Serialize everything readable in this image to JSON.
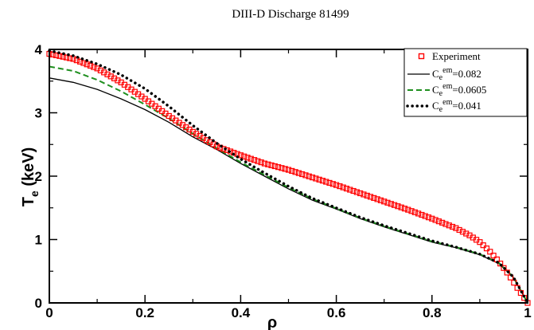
{
  "chart_data": {
    "type": "line",
    "title": "DIII-D Discharge 81499",
    "xlabel": "ρ",
    "ylabel": {
      "main": "T",
      "sub": "e",
      "rest": " (keV)"
    },
    "xlim": [
      0,
      1
    ],
    "ylim": [
      0,
      4
    ],
    "x_ticks": [
      {
        "value": 0,
        "label": "0"
      },
      {
        "value": 0.2,
        "label": "0.2"
      },
      {
        "value": 0.4,
        "label": "0.4"
      },
      {
        "value": 0.6,
        "label": "0.6"
      },
      {
        "value": 0.8,
        "label": "0.8"
      },
      {
        "value": 1,
        "label": "1"
      }
    ],
    "y_ticks": [
      {
        "value": 0,
        "label": "0"
      },
      {
        "value": 1,
        "label": "1"
      },
      {
        "value": 2,
        "label": "2"
      },
      {
        "value": 3,
        "label": "3"
      },
      {
        "value": 4,
        "label": "4"
      }
    ],
    "grid": false,
    "legend_position": "top-right",
    "series": [
      {
        "name": "Experiment",
        "style": "markers",
        "color": "#ff0000",
        "x": [
          0,
          0.05,
          0.1,
          0.15,
          0.2,
          0.25,
          0.3,
          0.35,
          0.4,
          0.45,
          0.5,
          0.55,
          0.6,
          0.65,
          0.7,
          0.75,
          0.8,
          0.85,
          0.88,
          0.9,
          0.92,
          0.94,
          0.96,
          0.98,
          1.0
        ],
        "y": [
          3.93,
          3.85,
          3.7,
          3.48,
          3.22,
          2.95,
          2.7,
          2.47,
          2.33,
          2.2,
          2.1,
          1.98,
          1.86,
          1.73,
          1.6,
          1.47,
          1.33,
          1.18,
          1.06,
          0.96,
          0.82,
          0.65,
          0.45,
          0.22,
          0.0
        ]
      },
      {
        "name": {
          "main": "C",
          "sub": "e",
          "sup": "em",
          "rest": "=0.082"
        },
        "style": "solid",
        "color": "#000000",
        "x": [
          0,
          0.05,
          0.1,
          0.15,
          0.2,
          0.25,
          0.3,
          0.35,
          0.4,
          0.45,
          0.5,
          0.55,
          0.6,
          0.65,
          0.7,
          0.75,
          0.8,
          0.85,
          0.9,
          0.94,
          0.97,
          1.0
        ],
        "y": [
          3.55,
          3.48,
          3.37,
          3.22,
          3.05,
          2.85,
          2.62,
          2.42,
          2.2,
          2.0,
          1.8,
          1.62,
          1.48,
          1.33,
          1.2,
          1.08,
          0.96,
          0.87,
          0.76,
          0.62,
          0.4,
          0.0
        ]
      },
      {
        "name": {
          "main": "C",
          "sub": "e",
          "sup": "em",
          "rest": "=0.0605"
        },
        "style": "dashed",
        "color": "#1f8f1f",
        "x": [
          0,
          0.05,
          0.1,
          0.15,
          0.2,
          0.25,
          0.3,
          0.35,
          0.4,
          0.45,
          0.5,
          0.55,
          0.6,
          0.65,
          0.7,
          0.75,
          0.8,
          0.85,
          0.9,
          0.94,
          0.97,
          1.0
        ],
        "y": [
          3.73,
          3.66,
          3.52,
          3.34,
          3.13,
          2.91,
          2.67,
          2.44,
          2.22,
          2.02,
          1.82,
          1.64,
          1.49,
          1.34,
          1.21,
          1.09,
          0.97,
          0.88,
          0.77,
          0.63,
          0.41,
          0.0
        ]
      },
      {
        "name": {
          "main": "C",
          "sub": "e",
          "sup": "em",
          "rest": "=0.041"
        },
        "style": "dotted",
        "color": "#000000",
        "x": [
          0,
          0.05,
          0.1,
          0.15,
          0.2,
          0.25,
          0.3,
          0.35,
          0.4,
          0.45,
          0.5,
          0.55,
          0.6,
          0.65,
          0.7,
          0.75,
          0.8,
          0.85,
          0.9,
          0.94,
          0.97,
          1.0
        ],
        "y": [
          3.98,
          3.9,
          3.77,
          3.6,
          3.38,
          3.1,
          2.8,
          2.52,
          2.27,
          2.05,
          1.84,
          1.65,
          1.5,
          1.35,
          1.22,
          1.1,
          0.98,
          0.88,
          0.77,
          0.63,
          0.41,
          0.0
        ]
      }
    ]
  }
}
